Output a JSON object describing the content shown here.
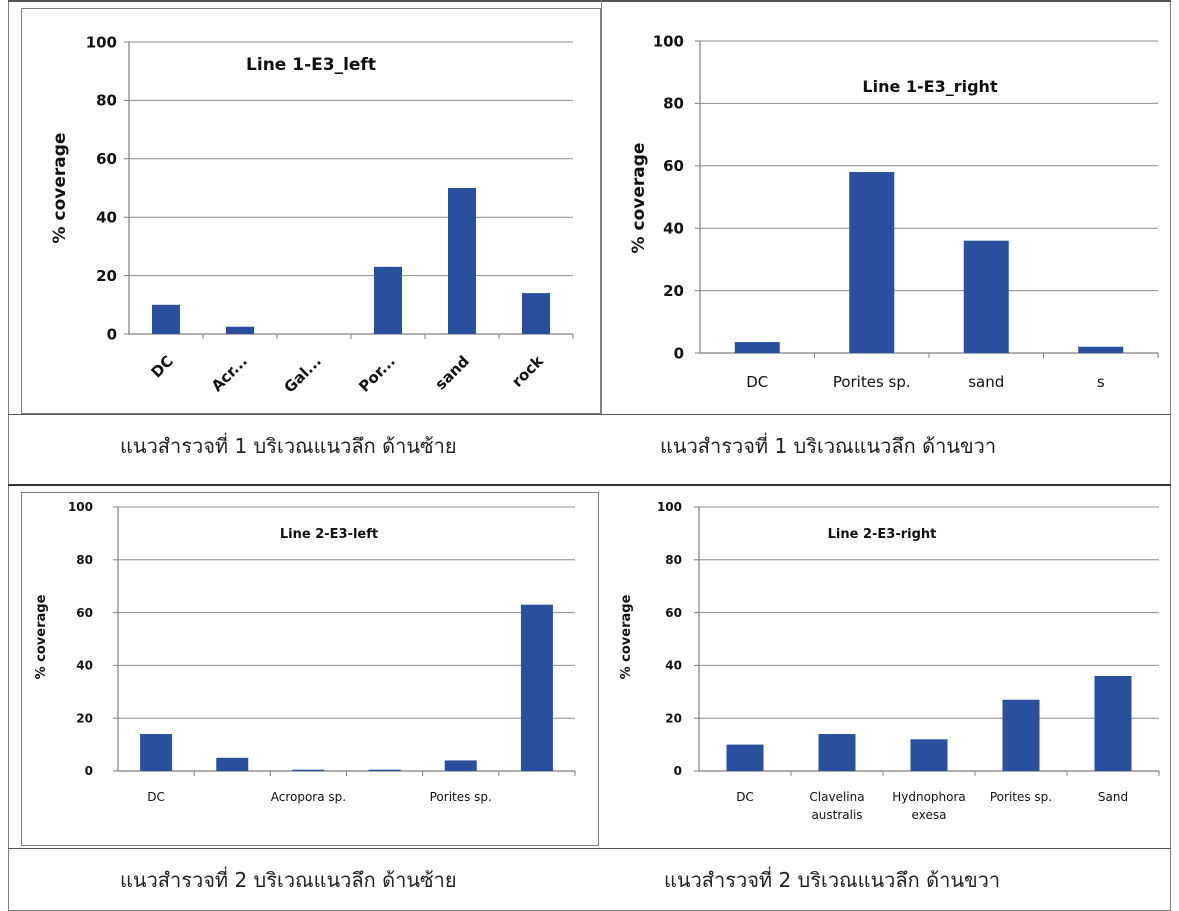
{
  "colors": {
    "bar": "#2a4f9c",
    "grid": "#8c8c8c",
    "axis": "#7f7f7f"
  },
  "captions": {
    "p1": "แนวสำรวจที่ 1 บริเวณแนวลึก ด้านซ้าย",
    "p2": "แนวสำรวจที่ 1 บริเวณแนวลึก ด้านขวา",
    "p3": "แนวสำรวจที่ 2 บริเวณแนวลึก ด้านซ้าย",
    "p4": "แนวสำรวจที่ 2 บริเวณแนวลึก ด้านขวา"
  },
  "chart_data": [
    {
      "type": "bar",
      "title": "Line 1-E3_left",
      "ylabel": "% coverage",
      "xlabel": "",
      "categories": [
        "DC",
        "Acr...",
        "Gal...",
        "Por...",
        "sand",
        "rock"
      ],
      "values": [
        10,
        2.5,
        0,
        23,
        50,
        14
      ],
      "ylim": [
        0,
        100
      ],
      "yticks": [
        "0",
        "20",
        "40",
        "60",
        "80",
        "100"
      ],
      "grid": true
    },
    {
      "type": "bar",
      "title": "Line 1-E3_right",
      "ylabel": "% coverage",
      "xlabel": "",
      "categories": [
        "DC",
        "Porites sp.",
        "sand",
        "s"
      ],
      "values": [
        3.5,
        58,
        36,
        2
      ],
      "ylim": [
        0,
        100
      ],
      "yticks": [
        "0",
        "20",
        "40",
        "60",
        "80",
        "100"
      ],
      "grid": true
    },
    {
      "type": "bar",
      "title": "Line 2-E3-left",
      "ylabel": "% coverage",
      "xlabel": "",
      "categories": [
        "DC",
        "",
        "Acropora sp.",
        "",
        "Porites sp.",
        ""
      ],
      "values": [
        14,
        5,
        0.5,
        0.5,
        4,
        63
      ],
      "ylim": [
        0,
        100
      ],
      "yticks": [
        "0",
        "20",
        "40",
        "60",
        "80",
        "100"
      ],
      "grid": true
    },
    {
      "type": "bar",
      "title": "Line 2-E3-right",
      "ylabel": "% coverage",
      "xlabel": "",
      "categories": [
        "DC",
        "Clavelina australis",
        "Hydnophora exesa",
        "Porites sp.",
        "Sand"
      ],
      "values": [
        10,
        14,
        12,
        27,
        36
      ],
      "ylim": [
        0,
        100
      ],
      "yticks": [
        "0",
        "20",
        "40",
        "60",
        "80",
        "100"
      ],
      "grid": true
    }
  ]
}
